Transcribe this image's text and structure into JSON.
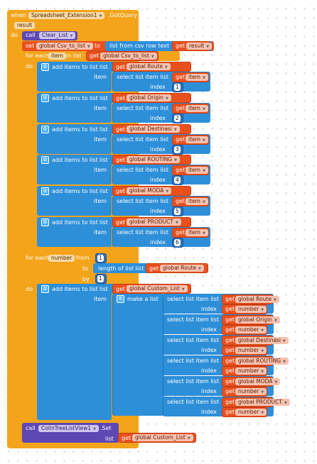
{
  "event": {
    "when": "when",
    "component": "Spreadsheet_Extension1",
    "event_name": ".GotQuery",
    "param": "result",
    "do": "do"
  },
  "call_clear": {
    "call": "call",
    "proc": "Clear_List"
  },
  "set_csv": {
    "set": "set",
    "var": "global Csv_to_list",
    "to": "to",
    "fn": "list from csv row  text",
    "get": "get",
    "arg": "result"
  },
  "foreach_item": {
    "label": "for each",
    "var": "item",
    "in_list": "in list",
    "get": "get",
    "list": "global Csv_to_list",
    "do": "do"
  },
  "add_blocks": [
    {
      "title": "add items to list",
      "list_lbl": "list",
      "get": "get",
      "list": "global Route",
      "item_lbl": "item",
      "select": "select list item  list",
      "item_var": "item",
      "index_lbl": "index",
      "index": "1"
    },
    {
      "title": "add items to list",
      "list_lbl": "list",
      "get": "get",
      "list": "global Origin",
      "item_lbl": "item",
      "select": "select list item  list",
      "item_var": "item",
      "index_lbl": "index",
      "index": "2"
    },
    {
      "title": "add items to list",
      "list_lbl": "list",
      "get": "get",
      "list": "global Destinasi",
      "item_lbl": "item",
      "select": "select list item  list",
      "item_var": "item",
      "index_lbl": "index",
      "index": "3"
    },
    {
      "title": "add items to list",
      "list_lbl": "list",
      "get": "get",
      "list": "global ROUTING",
      "item_lbl": "item",
      "select": "select list item  list",
      "item_var": "item",
      "index_lbl": "index",
      "index": "4"
    },
    {
      "title": "add items to list",
      "list_lbl": "list",
      "get": "get",
      "list": "global MODA",
      "item_lbl": "item",
      "select": "select list item  list",
      "item_var": "item",
      "index_lbl": "index",
      "index": "5"
    },
    {
      "title": "add items to list",
      "list_lbl": "list",
      "get": "get",
      "list": "global PRODUCT",
      "item_lbl": "item",
      "select": "select list item  list",
      "item_var": "item",
      "index_lbl": "index",
      "index": "6"
    }
  ],
  "foreach_number": {
    "label": "for each",
    "var": "number",
    "from_lbl": "from",
    "from": "1",
    "to_lbl": "to",
    "length": "length of list  list",
    "get": "get",
    "length_list": "global Route",
    "by_lbl": "by",
    "by": "1",
    "do": "do"
  },
  "add_custom": {
    "title": "add items to list",
    "list_lbl": "list",
    "get": "get",
    "list": "global Custom_List",
    "item_lbl": "item",
    "make": "make a list"
  },
  "make_items": [
    {
      "select": "select list item  list",
      "get": "get",
      "list": "global Route",
      "index_lbl": "index",
      "index_var": "number"
    },
    {
      "select": "select list item  list",
      "get": "get",
      "list": "global Origin",
      "index_lbl": "index",
      "index_var": "number"
    },
    {
      "select": "select list item  list",
      "get": "get",
      "list": "global Destinasi",
      "index_lbl": "index",
      "index_var": "number"
    },
    {
      "select": "select list item  list",
      "get": "get",
      "list": "global ROUTING",
      "index_lbl": "index",
      "index_var": "number"
    },
    {
      "select": "select list item  list",
      "get": "get",
      "list": "global MODA",
      "index_lbl": "index",
      "index_var": "number"
    },
    {
      "select": "select list item  list",
      "get": "get",
      "list": "global PRODUCT",
      "index_lbl": "index",
      "index_var": "number"
    }
  ],
  "call_set": {
    "call": "call",
    "component": "ColinTreeListView1",
    "method": ".Set",
    "list_lbl": "list",
    "get": "get",
    "list": "global Custom_List"
  },
  "colors": {
    "control": "#f3a41b",
    "procedure": "#5d48b3",
    "list": "#2e8fd9",
    "variable": "#e8501e",
    "math": "#2e6fb8"
  },
  "icons": [
    "dropdown-arrow-icon",
    "mutator-gear-icon"
  ]
}
